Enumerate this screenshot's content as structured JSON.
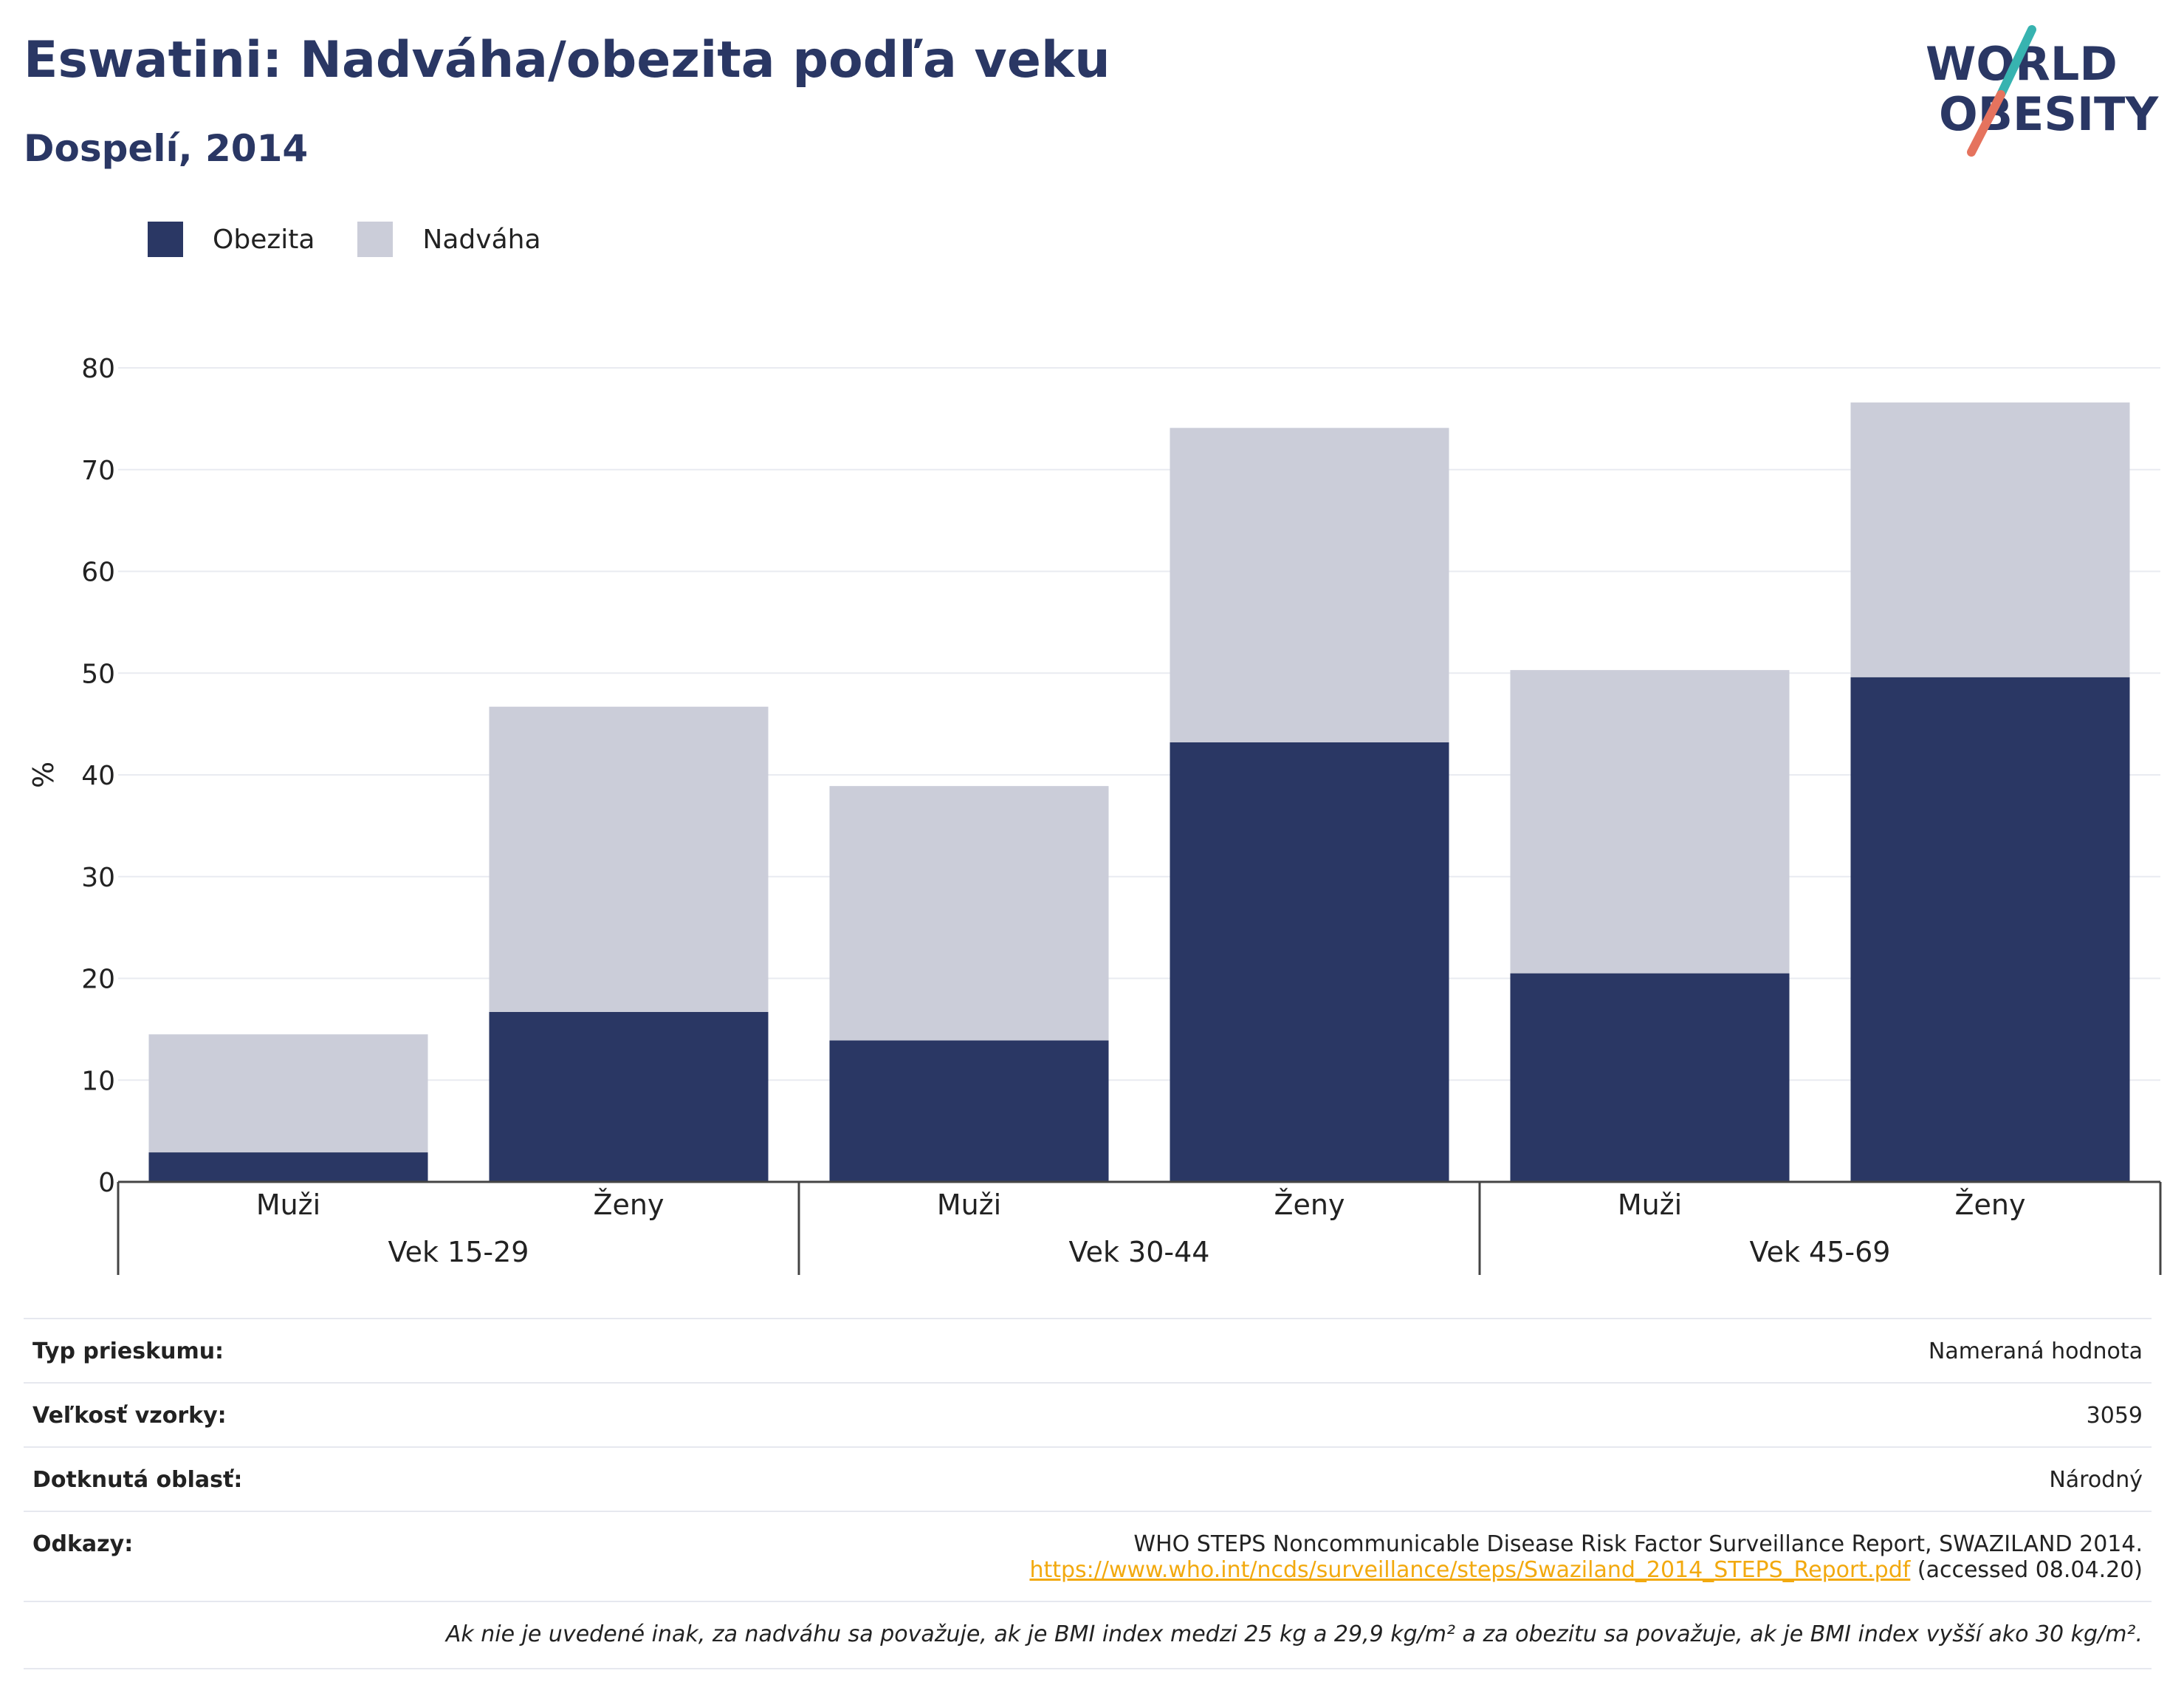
{
  "header": {
    "title": "Eswatini: Nadváha/obezita podľa veku",
    "subtitle": "Dospelí, 2014"
  },
  "logo": {
    "line1": "WORLD",
    "line2": "OBESITY",
    "colors": {
      "text": "#2a3764",
      "slash_top": "#37b3b0",
      "slash_bottom": "#e5735e"
    }
  },
  "legend": [
    {
      "label": "Obezita",
      "color": "#2a3764"
    },
    {
      "label": "Nadváha",
      "color": "#cbcdd9"
    }
  ],
  "chart_data": {
    "type": "bar",
    "stacked": true,
    "ylabel": "%",
    "ylim": [
      0,
      80
    ],
    "yticks": [
      0,
      10,
      20,
      30,
      40,
      50,
      60,
      70,
      80
    ],
    "grid": true,
    "legend_position": "top-left",
    "groups": [
      {
        "label": "Vek 15-29",
        "categories": [
          "Muži",
          "Ženy"
        ]
      },
      {
        "label": "Vek 30-44",
        "categories": [
          "Muži",
          "Ženy"
        ]
      },
      {
        "label": "Vek 45-69",
        "categories": [
          "Muži",
          "Ženy"
        ]
      }
    ],
    "series": [
      {
        "name": "Obezita",
        "color": "#2a3764",
        "values": [
          2.9,
          16.7,
          13.9,
          43.2,
          20.5,
          49.6
        ]
      },
      {
        "name": "Nadváha",
        "color": "#cbcdd9",
        "values": [
          11.6,
          30.0,
          25.0,
          30.9,
          29.8,
          27.0
        ]
      }
    ]
  },
  "info": {
    "rows": [
      {
        "label": "Typ prieskumu:",
        "value": "Nameraná hodnota"
      },
      {
        "label": "Veľkosť vzorky:",
        "value": "3059"
      },
      {
        "label": "Dotknutá oblasť:",
        "value": "Národný"
      }
    ],
    "references": {
      "label": "Odkazy:",
      "text": "WHO STEPS Noncommunicable Disease Risk Factor Surveillance Report, SWAZILAND 2014.",
      "link": "https://www.who.int/ncds/surveillance/steps/Swaziland_2014_STEPS_Report.pdf",
      "accessed": " (accessed 08.04.20)"
    },
    "note": "Ak nie je uvedené inak, za nadváhu sa považuje, ak je BMI index medzi 25 kg a 29,9 kg/m² a za obezitu sa považuje, ak je BMI index vyšší ako 30 kg/m²."
  }
}
